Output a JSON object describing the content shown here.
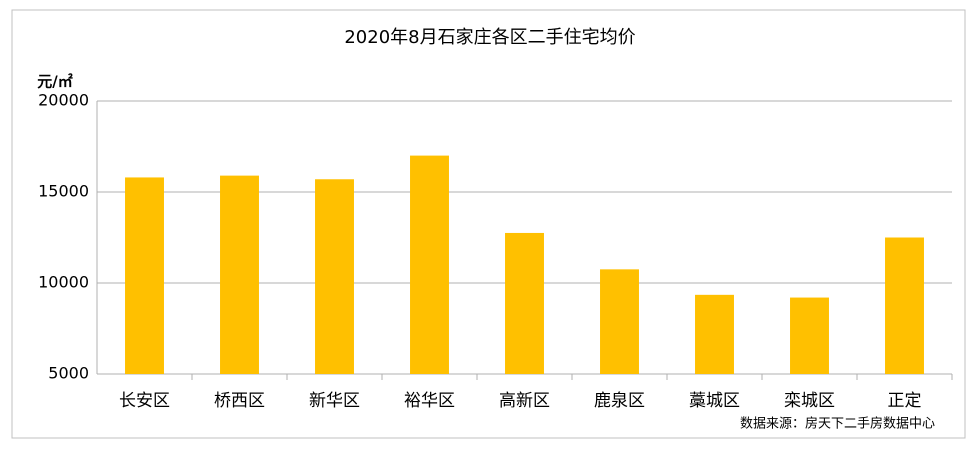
{
  "chart_data": {
    "type": "bar",
    "title": "2020年8月石家庄各区二手住宅均价",
    "y_label": "元/㎡",
    "note": "数据来源：房天下二手房数据中心",
    "categories": [
      "长安区",
      "桥西区",
      "新华区",
      "裕华区",
      "高新区",
      "鹿泉区",
      "藁城区",
      "栾城区",
      "正定"
    ],
    "values": [
      15800,
      15900,
      15700,
      17000,
      12750,
      10750,
      9350,
      9200,
      12500
    ],
    "color": "#ffc000",
    "ylim": [
      5000,
      20000
    ],
    "yticks": [
      5000,
      10000,
      15000,
      20000
    ],
    "grid": true
  }
}
